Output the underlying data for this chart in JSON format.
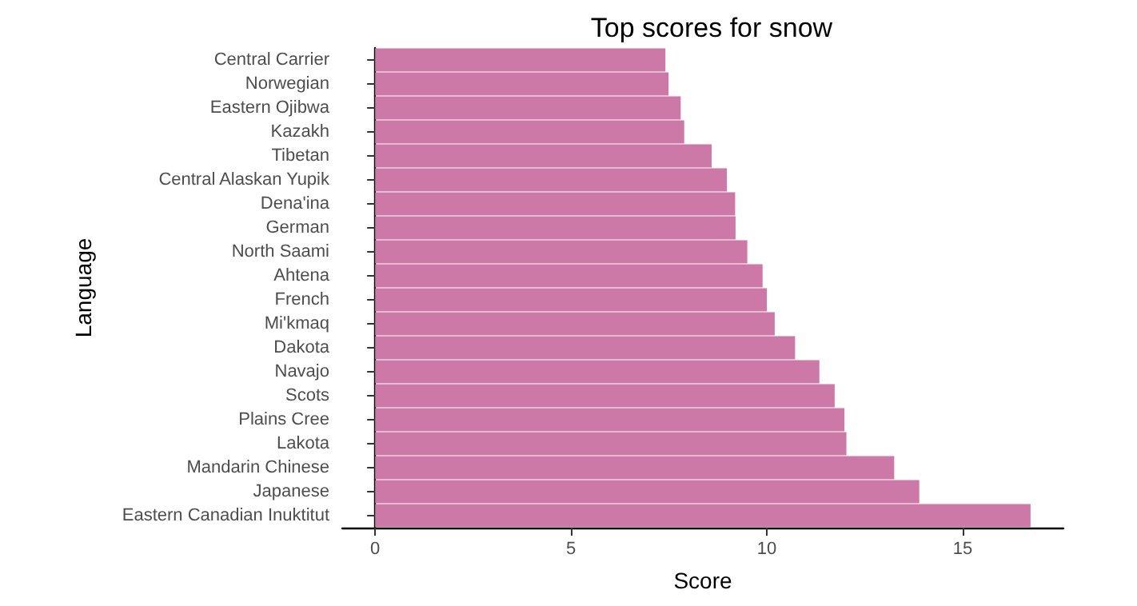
{
  "chart_data": {
    "type": "bar",
    "orientation": "horizontal",
    "title": "Top scores for snow",
    "xlabel": "Score",
    "ylabel": "Language",
    "categories": [
      "Central Carrier",
      "Norwegian",
      "Eastern Ojibwa",
      "Kazakh",
      "Tibetan",
      "Central Alaskan Yupik",
      "Dena'ina",
      "German",
      "North Saami",
      "Ahtena",
      "French",
      "Mi'kmaq",
      "Dakota",
      "Navajo",
      "Scots",
      "Plains Cree",
      "Lakota",
      "Mandarin Chinese",
      "Japanese",
      "Eastern Canadian Inuktitut"
    ],
    "values": [
      7.41,
      7.49,
      7.8,
      7.89,
      8.59,
      8.98,
      9.19,
      9.2,
      9.5,
      9.89,
      10.0,
      10.2,
      10.72,
      11.34,
      11.73,
      11.98,
      12.03,
      13.25,
      13.89,
      16.73
    ],
    "color": "#cc79a7",
    "xlim": [
      -0.84,
      17.57
    ],
    "xticks": [
      0,
      5,
      10,
      15
    ],
    "grid": false
  }
}
